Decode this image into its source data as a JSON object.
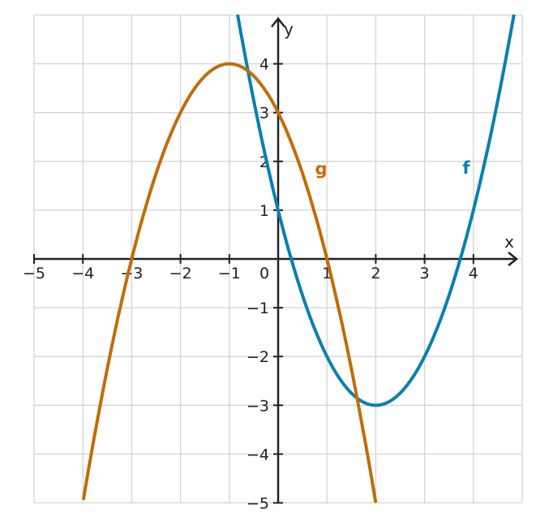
{
  "chart_data": {
    "type": "line",
    "xlabel": "x",
    "ylabel": "y",
    "xlim": [
      -5,
      5
    ],
    "ylim": [
      -5,
      5
    ],
    "grid": true,
    "x_ticks": [
      "−5",
      "−4",
      "−3",
      "−2",
      "−1",
      "0",
      "1",
      "2",
      "3",
      "4"
    ],
    "y_ticks": [
      "4",
      "3",
      "2",
      "1",
      "−1",
      "−2",
      "−3",
      "−4",
      "−5"
    ],
    "series": [
      {
        "name": "f",
        "color": "#0a7fb0",
        "x": [
          -1,
          0,
          1,
          2,
          3,
          4
        ],
        "y": [
          6,
          1,
          -2,
          -3,
          -2,
          1
        ]
      },
      {
        "name": "g",
        "color": "#c06d0a",
        "x": [
          -4,
          -3,
          -2,
          -1,
          0,
          1,
          2
        ],
        "y": [
          -5,
          0,
          3,
          4,
          3,
          0,
          -5
        ]
      }
    ]
  }
}
